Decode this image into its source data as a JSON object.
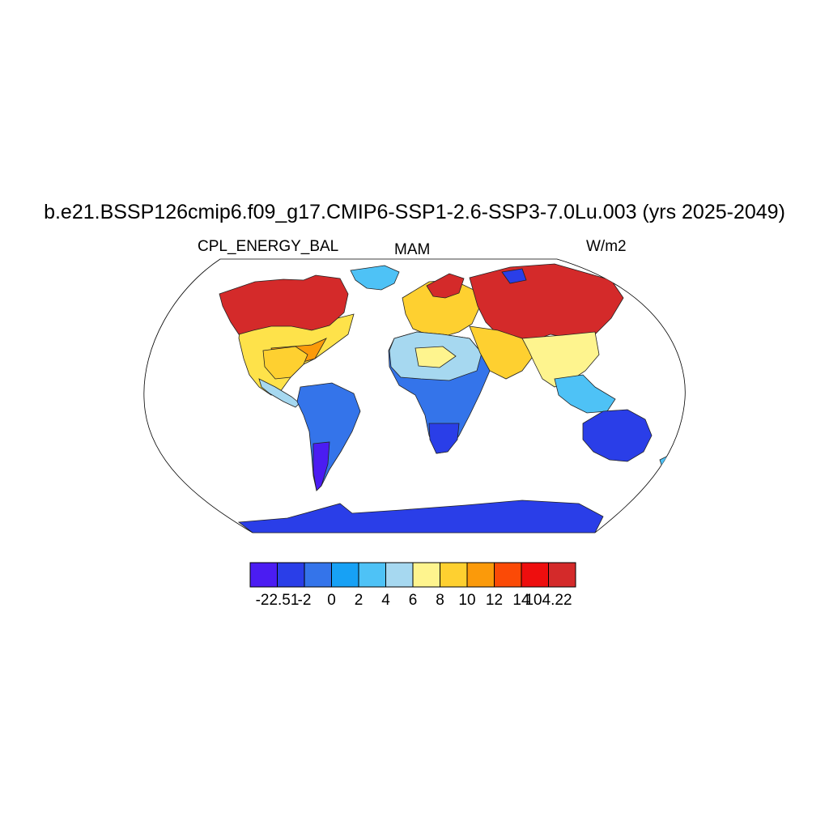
{
  "title": "b.e21.BSSP126cmip6.f09_g17.CMIP6-SSP1-2.6-SSP3-7.0Lu.003 (yrs 2025-2049)",
  "subtitle_left": "CPL_ENERGY_BAL",
  "subtitle_center": "MAM",
  "subtitle_right": "W/m2",
  "colorbar": {
    "colors": [
      "#4b1cf2",
      "#2a3ee8",
      "#3474ea",
      "#17a1f5",
      "#4ec2f6",
      "#a6d8f0",
      "#fef48e",
      "#fed030",
      "#fb9a0a",
      "#fb4a06",
      "#ee0e0e",
      "#d42a2a"
    ],
    "tick_labels": [
      "-22.51",
      "-2",
      "0",
      "2",
      "4",
      "6",
      "8",
      "10",
      "12",
      "14",
      "104.22"
    ]
  },
  "map": {
    "projection": "Robinson",
    "ocean_color": "#ffffff",
    "regions": [
      {
        "name": "north-america-arctic",
        "class": "very-high"
      },
      {
        "name": "north-america-south",
        "class": "moderate"
      },
      {
        "name": "south-america",
        "class": "negative"
      },
      {
        "name": "greenland",
        "class": "slightly-positive"
      },
      {
        "name": "africa",
        "class": "slightly-positive"
      },
      {
        "name": "europe",
        "class": "positive"
      },
      {
        "name": "eurasia-north",
        "class": "very-high"
      },
      {
        "name": "asia-south",
        "class": "moderate"
      },
      {
        "name": "australia",
        "class": "negative"
      },
      {
        "name": "antarctica",
        "class": "negative"
      }
    ]
  }
}
